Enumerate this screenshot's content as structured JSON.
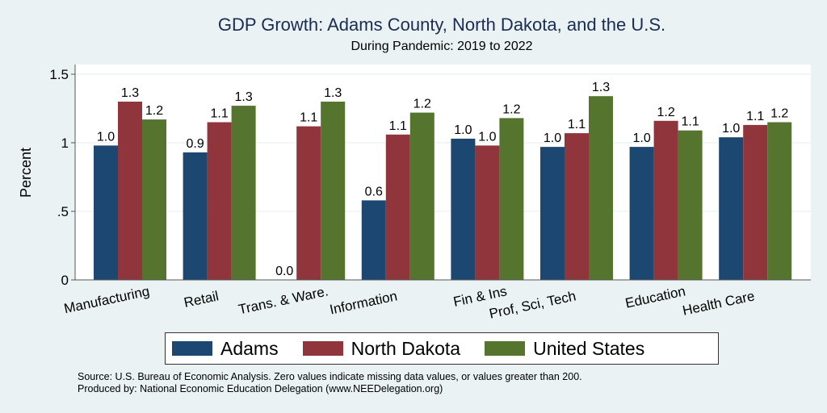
{
  "chart_data": {
    "type": "bar",
    "title": "GDP Growth: Adams County, North Dakota, and the U.S.",
    "subtitle": "During Pandemic: 2019 to 2022",
    "xlabel": "",
    "ylabel": "Percent",
    "ylim": [
      0,
      1.6
    ],
    "yticks": [
      0,
      0.5,
      1,
      1.5
    ],
    "ytick_labels": [
      "0",
      ".5",
      "1",
      "1.5"
    ],
    "grid": true,
    "legend_position": "bottom",
    "categories": [
      "Manufacturing",
      "Retail",
      "Trans. & Ware.",
      "Information",
      "Fin & Ins",
      "Prof, Sci, Tech",
      "Education",
      "Health Care"
    ],
    "series": [
      {
        "name": "Adams",
        "color": "#1c4770",
        "values": [
          0.98,
          0.93,
          0.0,
          0.58,
          1.03,
          0.97,
          0.97,
          1.04
        ],
        "labels": [
          "1.0",
          "0.9",
          "0.0",
          "0.6",
          "1.0",
          "1.0",
          "1.0",
          "1.0"
        ]
      },
      {
        "name": "North Dakota",
        "color": "#90353b",
        "values": [
          1.3,
          1.15,
          1.12,
          1.06,
          0.98,
          1.07,
          1.16,
          1.13
        ],
        "labels": [
          "1.3",
          "1.1",
          "1.1",
          "1.1",
          "1.0",
          "1.1",
          "1.2",
          "1.1"
        ]
      },
      {
        "name": "United States",
        "color": "#55752f",
        "values": [
          1.17,
          1.27,
          1.3,
          1.22,
          1.18,
          1.34,
          1.09,
          1.15
        ],
        "labels": [
          "1.2",
          "1.3",
          "1.3",
          "1.2",
          "1.2",
          "1.3",
          "1.1",
          "1.2"
        ]
      }
    ]
  },
  "footer": {
    "source": "Source: U.S. Bureau of Economic Analysis. Zero values indicate missing data values, or values greater than 200.",
    "produced_by": "Produced by: National Economic Education Delegation (www.NEEDelegation.org)"
  }
}
